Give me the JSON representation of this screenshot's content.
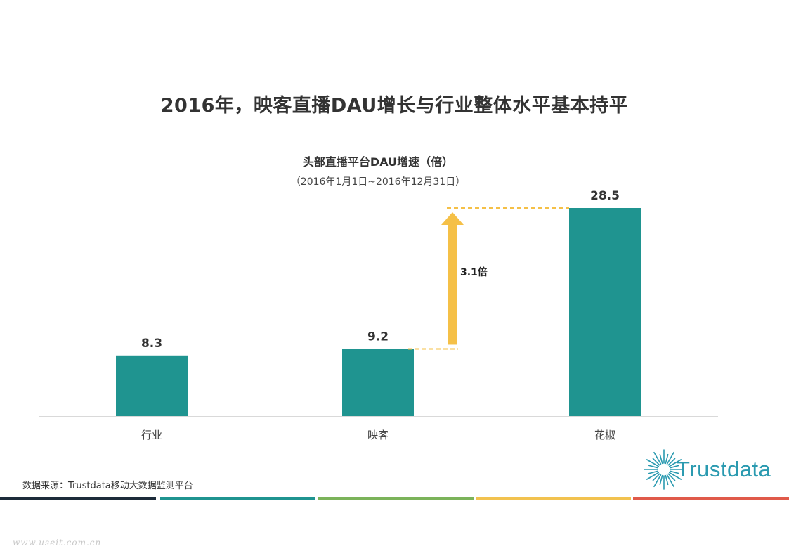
{
  "page": {
    "title": "2016年，映客直播DAU增长与行业整体水平基本持平",
    "source": "数据来源：Trustdata移动大数据监测平台",
    "logo_text": "Trustdata",
    "watermark": "www.useit.com.cn"
  },
  "chart_data": {
    "type": "bar",
    "title": "头部直播平台DAU增速（倍）",
    "subtitle": "（2016年1月1日~2016年12月31日）",
    "categories": [
      "行业",
      "映客",
      "花椒"
    ],
    "values": [
      8.3,
      9.2,
      28.5
    ],
    "value_labels": [
      "8.3",
      "9.2",
      "28.5"
    ],
    "ylim": [
      0,
      30
    ],
    "grid": false,
    "bar_color": "#1f9490",
    "annotation": {
      "label": "3.1倍",
      "from_category": "映客",
      "to_category": "花椒",
      "color": "#f5c047"
    }
  },
  "colors": {
    "stripes": [
      "#1c2b3a",
      "#1f9490",
      "#7bb35a",
      "#f2c24f",
      "#e05a4a"
    ],
    "logo": "#2a9ab0"
  }
}
